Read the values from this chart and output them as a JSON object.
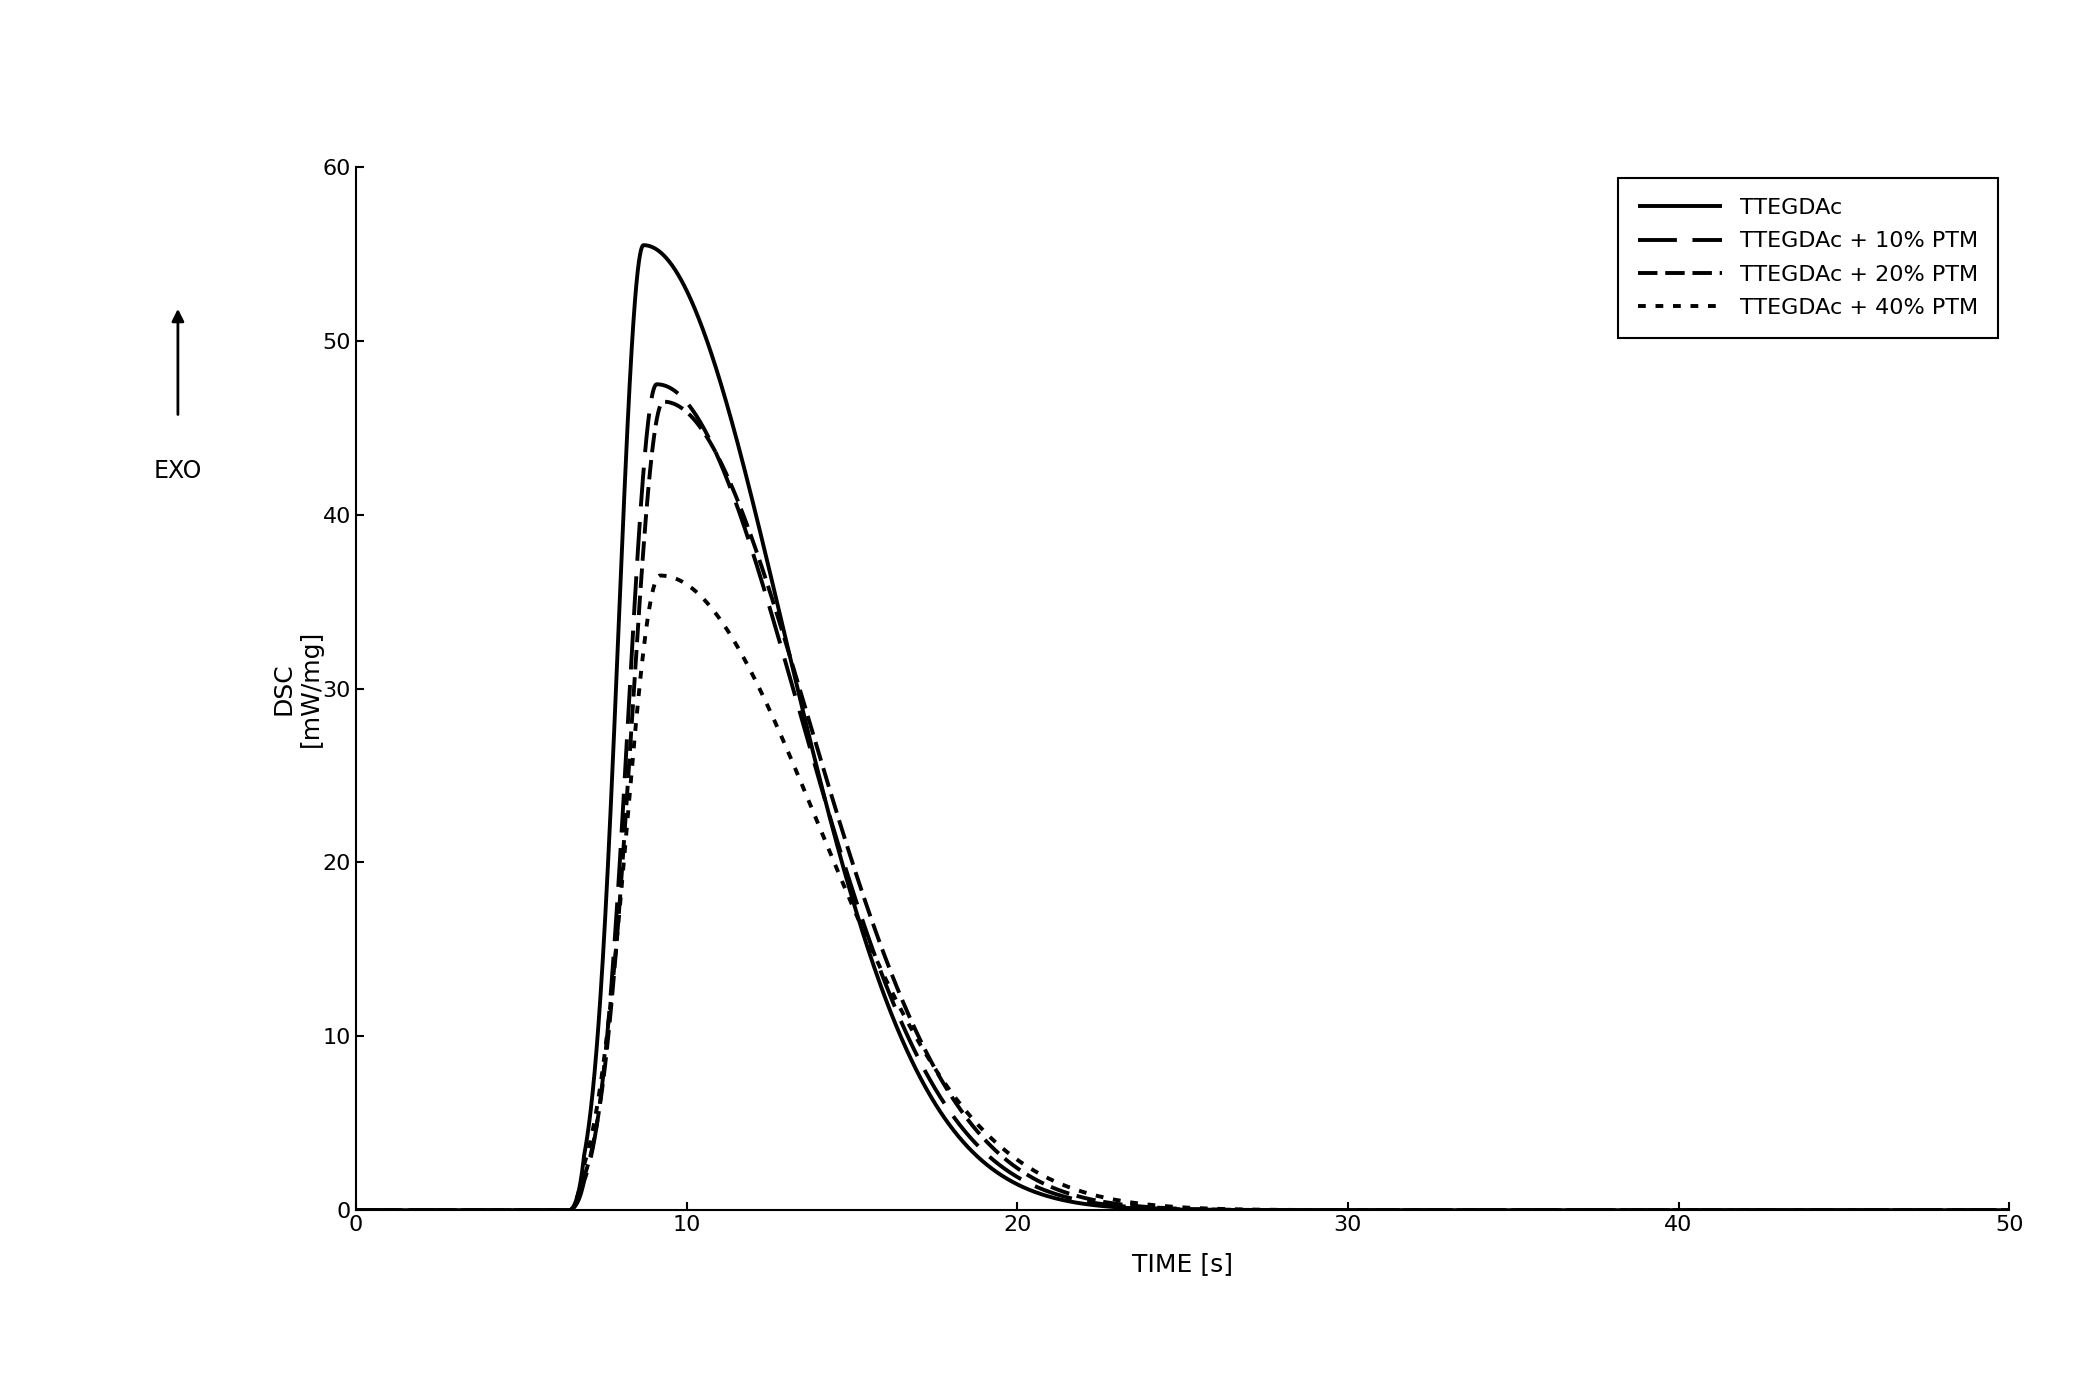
{
  "title": "",
  "xlabel": "TIME [s]",
  "ylabel": "DSC\n[mW/mg]",
  "xlim": [
    0,
    50
  ],
  "ylim": [
    0,
    60
  ],
  "xticks": [
    0,
    10,
    20,
    30,
    40,
    50
  ],
  "yticks": [
    0,
    10,
    20,
    30,
    40,
    50,
    60
  ],
  "background_color": "#ffffff",
  "series": [
    {
      "label": "TTEGDAc",
      "linewidth": 2.8,
      "color": "#000000",
      "peak_x": 8.7,
      "peak_y": 55.5,
      "rise_sigma": 0.75,
      "fall_sigma": 4.2,
      "onset": 6.5
    },
    {
      "label": "TTEGDAc + 10% PTM",
      "linewidth": 2.8,
      "color": "#000000",
      "peak_x": 9.1,
      "peak_y": 47.5,
      "rise_sigma": 0.85,
      "fall_sigma": 4.3,
      "onset": 6.5
    },
    {
      "label": "TTEGDAc + 20% PTM",
      "linewidth": 2.8,
      "color": "#000000",
      "peak_x": 9.3,
      "peak_y": 46.5,
      "rise_sigma": 0.95,
      "fall_sigma": 4.4,
      "onset": 6.5
    },
    {
      "label": "TTEGDAc + 40% PTM",
      "linewidth": 2.8,
      "color": "#000000",
      "peak_x": 9.2,
      "peak_y": 36.5,
      "rise_sigma": 1.0,
      "fall_sigma": 4.8,
      "onset": 6.5
    }
  ],
  "custom_ls": [
    [
      0,
      []
    ],
    [
      0,
      [
        10,
        4
      ]
    ],
    [
      0,
      [
        5,
        2,
        5,
        2
      ]
    ],
    [
      0,
      [
        2,
        2.5
      ]
    ]
  ],
  "legend_loc": "upper right",
  "fontsize_labels": 18,
  "fontsize_ticks": 16,
  "fontsize_legend": 16,
  "fontsize_exo": 17
}
